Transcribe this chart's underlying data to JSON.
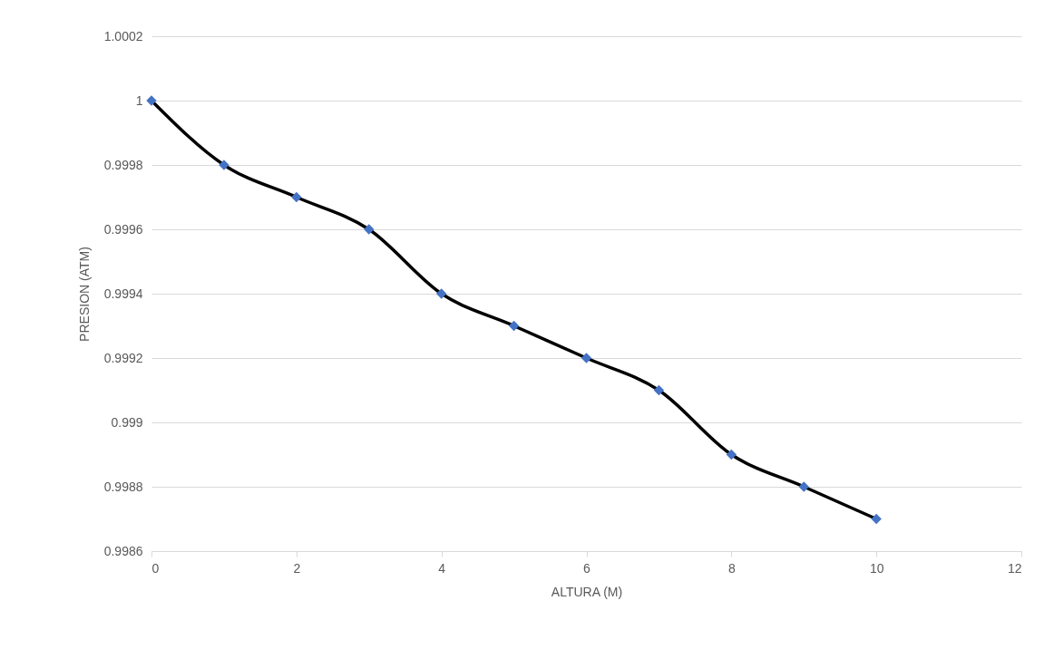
{
  "chart_data": {
    "type": "line",
    "xlabel": "ALTURA (M)",
    "ylabel": "PRESION (ATM)",
    "x": [
      0,
      1,
      2,
      3,
      4,
      5,
      6,
      7,
      8,
      9,
      10
    ],
    "series": [
      {
        "color": "#000000",
        "colors": [
          "#4472c4",
          "#4472c4",
          "#4472c4",
          "#4472c4",
          "#4472c4",
          "#4472c4",
          "#4472c4",
          "#4472c4",
          "#4472c4",
          "#4472c4",
          "#4472c4"
        ],
        "values": [
          1,
          0.9998,
          0.9997,
          0.9996,
          0.9994,
          0.9993,
          0.9992,
          0.9991,
          0.9989,
          0.9988,
          0.9987
        ]
      }
    ],
    "xlim": [
      0,
      12
    ],
    "xticks": [
      0,
      2,
      4,
      6,
      8,
      10,
      12
    ],
    "ylim": [
      0.9986,
      1.0002
    ],
    "yticks": [
      0.9986,
      0.9988,
      0.999,
      0.9992,
      0.9994,
      0.9996,
      0.9998,
      1,
      1.0002
    ],
    "grid": "y",
    "marker": "diamond",
    "line_style": "solid"
  }
}
